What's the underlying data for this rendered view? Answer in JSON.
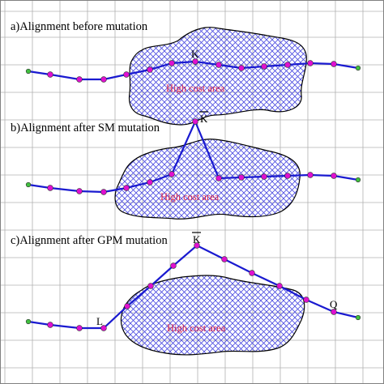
{
  "figure": {
    "panels": [
      {
        "title": "a)Alignment before mutation",
        "area_label": "High cost area",
        "point_labels": [
          {
            "text": "K",
            "overline": false
          }
        ]
      },
      {
        "title": "b)Alignment after SM mutation",
        "area_label": "High cost area",
        "point_labels": [
          {
            "text": "K",
            "overline": true
          }
        ]
      },
      {
        "title": "c)Alignment after GPM mutation",
        "area_label": "High cost area",
        "point_labels": [
          {
            "text": "K",
            "overline": true
          },
          {
            "text": "L",
            "overline": false
          },
          {
            "text": "Q",
            "overline": false
          }
        ]
      }
    ],
    "colors": {
      "background": "#ffffff",
      "grid": "#b0b0b0",
      "hatch": "#4a4ae0",
      "area_outline": "#000000",
      "alignment_line": "#1a1ad0",
      "intermediate_point": "#e010d0",
      "end_point": "#40c040",
      "area_label": "#d8204a"
    }
  }
}
